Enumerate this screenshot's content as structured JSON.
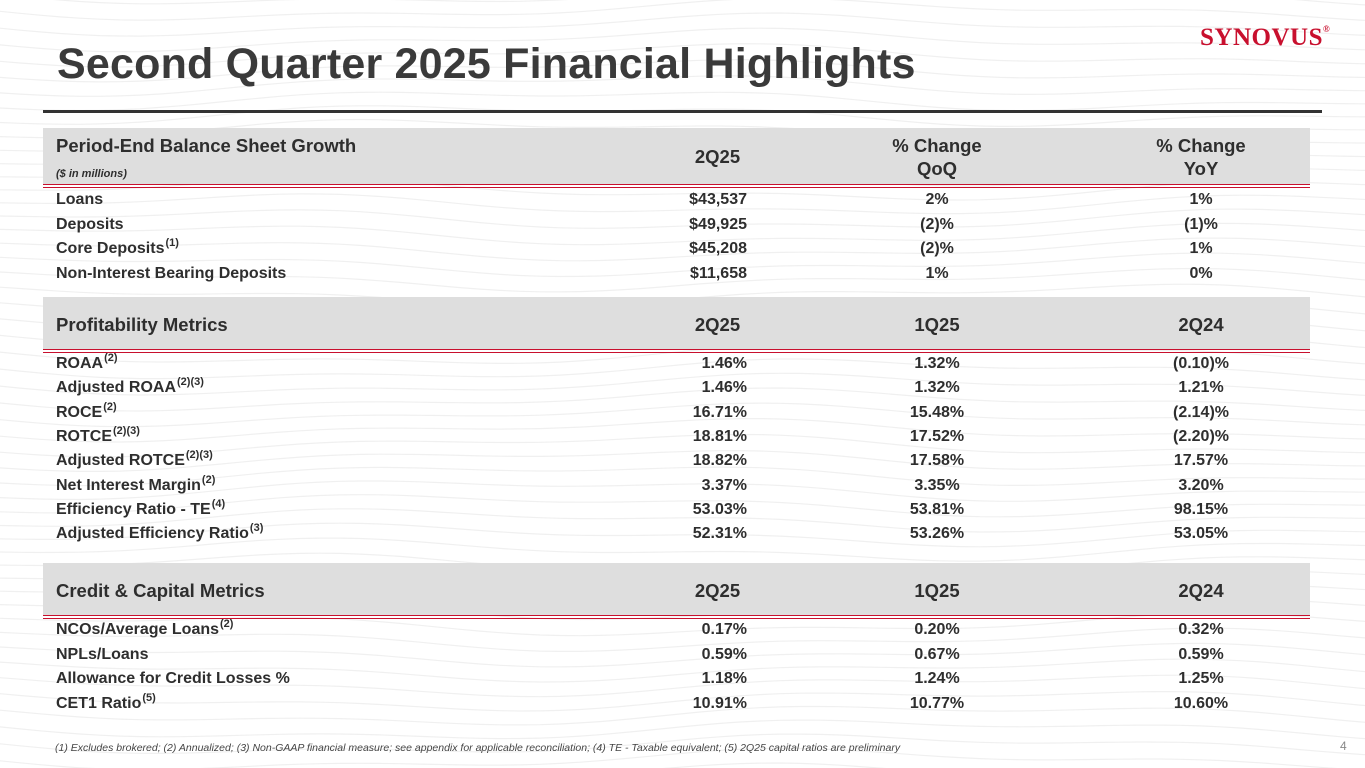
{
  "slide": {
    "title": "Second Quarter 2025 Financial Highlights",
    "logo": "SYNOVUS",
    "logo_mark": "®",
    "page_number": "4",
    "footnote": "(1) Excludes brokered; (2) Annualized; (3) Non-GAAP financial measure; see appendix for applicable reconciliation; (4) TE - Taxable equivalent; (5) 2Q25 capital ratios are preliminary"
  },
  "balance": {
    "header": "Period-End Balance Sheet Growth",
    "units": "($ in millions)",
    "col1": "2Q25",
    "col2_line1": "% Change",
    "col2_line2": "QoQ",
    "col3_line1": "% Change",
    "col3_line2": "YoY",
    "rows": [
      {
        "label": "Loans",
        "sup": "",
        "v1": "$43,537",
        "v2": "2%",
        "v3": "1%"
      },
      {
        "label": "Deposits",
        "sup": "",
        "v1": "$49,925",
        "v2": "(2)%",
        "v3": "(1)%"
      },
      {
        "label": "Core Deposits",
        "sup": "(1)",
        "v1": "$45,208",
        "v2": "(2)%",
        "v3": "1%"
      },
      {
        "label": "Non-Interest Bearing Deposits",
        "sup": "",
        "v1": "$11,658",
        "v2": "1%",
        "v3": "0%"
      }
    ]
  },
  "profitability": {
    "header": "Profitability Metrics",
    "col1": "2Q25",
    "col2": "1Q25",
    "col3": "2Q24",
    "rows": [
      {
        "label": "ROAA",
        "sup": "(2)",
        "v1": "1.46%",
        "v2": "1.32%",
        "v3": "(0.10)%"
      },
      {
        "label": "Adjusted ROAA",
        "sup": "(2)(3)",
        "v1": "1.46%",
        "v2": "1.32%",
        "v3": "1.21%"
      },
      {
        "label": "ROCE",
        "sup": "(2)",
        "v1": "16.71%",
        "v2": "15.48%",
        "v3": "(2.14)%"
      },
      {
        "label": "ROTCE",
        "sup": "(2)(3)",
        "v1": "18.81%",
        "v2": "17.52%",
        "v3": "(2.20)%"
      },
      {
        "label": "Adjusted ROTCE",
        "sup": "(2)(3)",
        "v1": "18.82%",
        "v2": "17.58%",
        "v3": "17.57%"
      },
      {
        "label": "Net Interest Margin",
        "sup": "(2)",
        "v1": "3.37%",
        "v2": "3.35%",
        "v3": "3.20%"
      },
      {
        "label": "Efficiency Ratio - TE",
        "sup": "(4)",
        "v1": "53.03%",
        "v2": "53.81%",
        "v3": "98.15%"
      },
      {
        "label": "Adjusted Efficiency Ratio",
        "sup": "(3)",
        "v1": "52.31%",
        "v2": "53.26%",
        "v3": "53.05%"
      }
    ]
  },
  "credit": {
    "header": "Credit & Capital Metrics",
    "col1": "2Q25",
    "col2": "1Q25",
    "col3": "2Q24",
    "rows": [
      {
        "label": "NCOs/Average Loans",
        "sup": "(2)",
        "v1": "0.17%",
        "v2": "0.20%",
        "v3": "0.32%"
      },
      {
        "label": "NPLs/Loans",
        "sup": "",
        "v1": "0.59%",
        "v2": "0.67%",
        "v3": "0.59%"
      },
      {
        "label": "Allowance for Credit Losses %",
        "sup": "",
        "v1": "1.18%",
        "v2": "1.24%",
        "v3": "1.25%"
      },
      {
        "label": "CET1 Ratio",
        "sup": "(5)",
        "v1": "10.91%",
        "v2": "10.77%",
        "v3": "10.60%"
      }
    ]
  }
}
